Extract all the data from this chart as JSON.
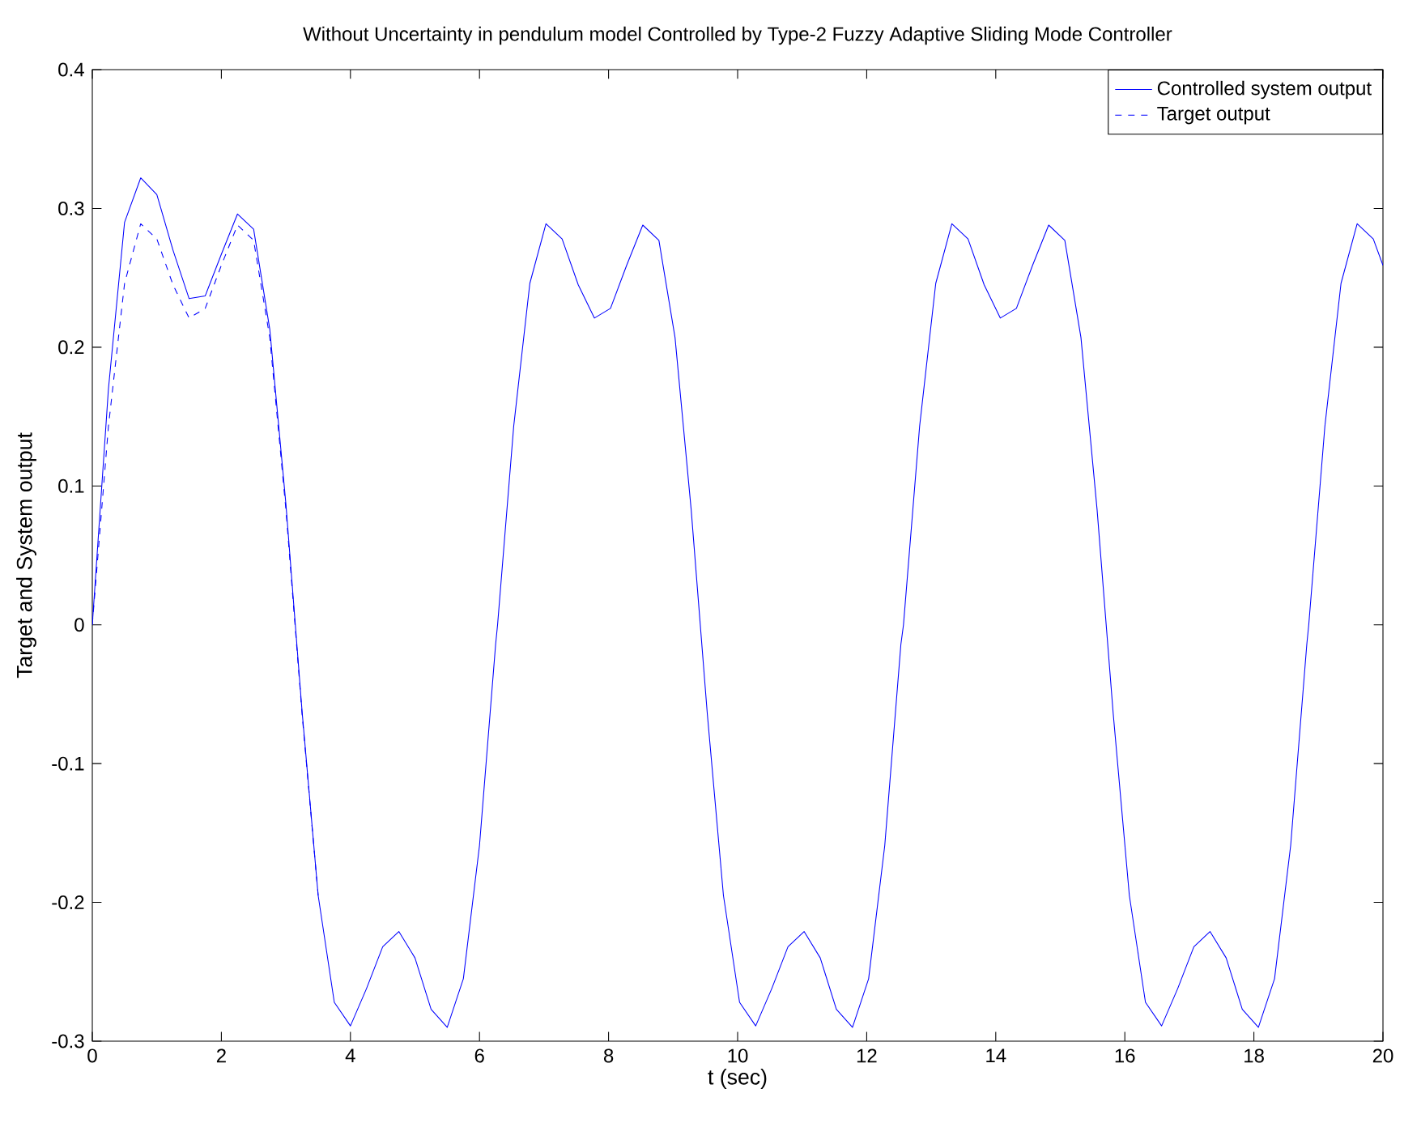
{
  "chart_data": {
    "type": "line",
    "title": "Without Uncertainty in pendulum model      Controlled by  Type-2 Fuzzy Adaptive Sliding Mode Controller",
    "xlabel": "t (sec)",
    "ylabel": "Target and System output",
    "xlim": [
      0,
      20
    ],
    "ylim": [
      -0.3,
      0.4
    ],
    "xticks": [
      0,
      2,
      4,
      6,
      8,
      10,
      12,
      14,
      16,
      18,
      20
    ],
    "yticks": [
      -0.3,
      -0.2,
      -0.1,
      0,
      0.1,
      0.2,
      0.3,
      0.4
    ],
    "legend": "top right",
    "grid": false,
    "series": [
      {
        "name": "Controlled system output",
        "color": "#0000ff",
        "line_style": "solid",
        "x": [
          0,
          0.25,
          0.5,
          0.75,
          1.0,
          1.25,
          1.5,
          1.75,
          2.0,
          2.25,
          2.5,
          2.75,
          3.0,
          3.25,
          3.5,
          3.75,
          4.0,
          4.25,
          4.5,
          4.75,
          5.0,
          5.25,
          5.5,
          5.75,
          6.0,
          6.25,
          6.28,
          6.53,
          6.78,
          7.03,
          7.28,
          7.53,
          7.78,
          8.03,
          8.28,
          8.53,
          8.78,
          9.03,
          9.28,
          9.53,
          9.78,
          10.03,
          10.28,
          10.53,
          10.78,
          11.03,
          11.28,
          11.53,
          11.78,
          12.03,
          12.28,
          12.53,
          12.57,
          12.82,
          13.07,
          13.32,
          13.57,
          13.82,
          14.07,
          14.32,
          14.57,
          14.82,
          15.07,
          15.32,
          15.57,
          15.82,
          16.07,
          16.32,
          16.57,
          16.82,
          17.07,
          17.32,
          17.57,
          17.82,
          18.07,
          18.32,
          18.57,
          18.82,
          18.85,
          19.1,
          19.35,
          19.6,
          19.85,
          20
        ],
        "values": [
          0.0,
          0.17,
          0.29,
          0.322,
          0.31,
          0.27,
          0.235,
          0.237,
          0.267,
          0.296,
          0.285,
          0.213,
          0.087,
          -0.062,
          -0.195,
          -0.272,
          -0.289,
          -0.262,
          -0.232,
          -0.221,
          -0.24,
          -0.277,
          -0.29,
          -0.255,
          -0.159,
          -0.014,
          0.0,
          0.143,
          0.246,
          0.289,
          0.278,
          0.245,
          0.221,
          0.228,
          0.259,
          0.288,
          0.277,
          0.207,
          0.083,
          -0.064,
          -0.195,
          -0.272,
          -0.289,
          -0.262,
          -0.232,
          -0.221,
          -0.24,
          -0.277,
          -0.29,
          -0.255,
          -0.159,
          -0.014,
          0.0,
          0.143,
          0.246,
          0.289,
          0.278,
          0.245,
          0.221,
          0.228,
          0.259,
          0.288,
          0.277,
          0.207,
          0.083,
          -0.064,
          -0.195,
          -0.272,
          -0.289,
          -0.262,
          -0.232,
          -0.221,
          -0.24,
          -0.277,
          -0.29,
          -0.255,
          -0.159,
          -0.014,
          0.0,
          0.143,
          0.246,
          0.289,
          0.278,
          0.259
        ]
      },
      {
        "name": "Target output",
        "color": "#0000ff",
        "line_style": "dashed",
        "x": [
          0,
          0.25,
          0.5,
          0.75,
          1.0,
          1.25,
          1.5,
          1.75,
          2.0,
          2.25,
          2.5,
          2.75,
          3.0,
          3.25,
          3.5
        ],
        "values": [
          0.0,
          0.143,
          0.246,
          0.289,
          0.278,
          0.245,
          0.221,
          0.228,
          0.259,
          0.288,
          0.277,
          0.207,
          0.083,
          -0.064,
          -0.195
        ]
      }
    ]
  }
}
